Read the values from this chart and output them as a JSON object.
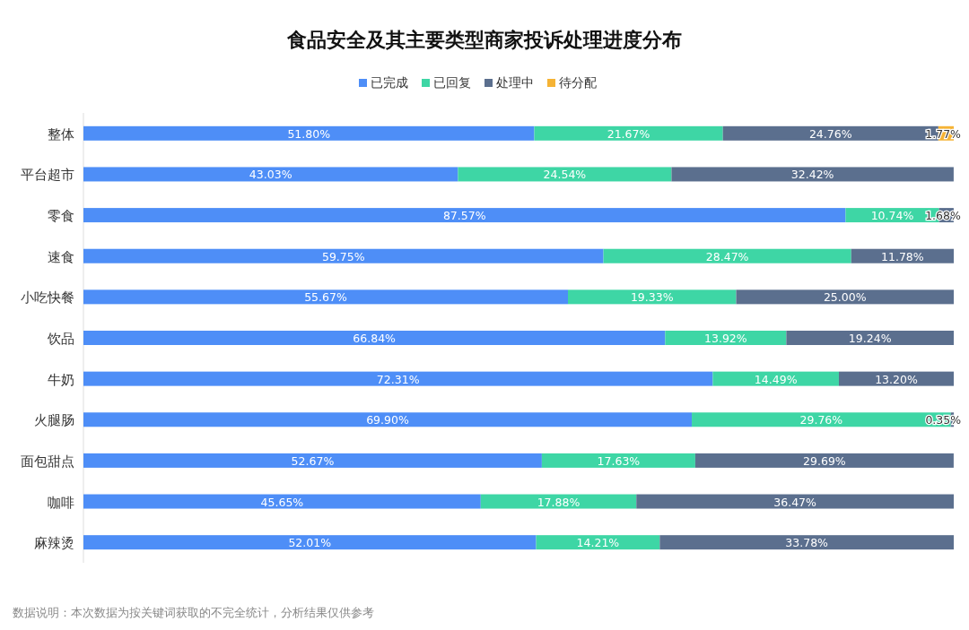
{
  "chart_data": {
    "type": "bar",
    "orientation": "horizontal",
    "stacked": true,
    "title": "食品安全及其主要类型商家投诉处理进度分布",
    "categories": [
      "整体",
      "平台超市",
      "零食",
      "速食",
      "小吃快餐",
      "饮品",
      "牛奶",
      "火腿肠",
      "面包甜点",
      "咖啡",
      "麻辣烫"
    ],
    "xlim": [
      0,
      100
    ],
    "tick_labels": "y",
    "legend": "top",
    "series": [
      {
        "name": "已完成",
        "color": "#4e8ef7",
        "values": [
          51.8,
          43.03,
          87.57,
          59.75,
          55.67,
          66.84,
          72.31,
          69.9,
          52.67,
          45.65,
          52.01
        ],
        "value_labels": [
          "51.80%",
          "43.03%",
          "87.57%",
          "59.75%",
          "55.67%",
          "66.84%",
          "72.31%",
          "69.90%",
          "52.67%",
          "45.65%",
          "52.01%"
        ]
      },
      {
        "name": "已回复",
        "color": "#3ed6a5",
        "values": [
          21.67,
          24.54,
          10.74,
          28.47,
          19.33,
          13.92,
          14.49,
          29.76,
          17.63,
          17.88,
          14.21
        ],
        "value_labels": [
          "21.67%",
          "24.54%",
          "10.74%",
          "28.47%",
          "19.33%",
          "13.92%",
          "14.49%",
          "29.76%",
          "17.63%",
          "17.88%",
          "14.21%"
        ]
      },
      {
        "name": "处理中",
        "color": "#5b6f8e",
        "values": [
          24.76,
          32.42,
          1.68,
          11.78,
          25.0,
          19.24,
          13.2,
          0.35,
          29.69,
          36.47,
          33.78
        ],
        "value_labels": [
          "24.76%",
          "32.42%",
          "1.68%",
          "11.78%",
          "25.00%",
          "19.24%",
          "13.20%",
          "0.35%",
          "29.69%",
          "36.47%",
          "33.78%"
        ]
      },
      {
        "name": "待分配",
        "color": "#f5b335",
        "values": [
          1.77,
          null,
          null,
          null,
          null,
          null,
          null,
          null,
          null,
          null,
          null
        ],
        "value_labels": [
          "1.77%",
          null,
          null,
          null,
          null,
          null,
          null,
          null,
          null,
          null,
          null
        ]
      }
    ],
    "annotations": [
      "数据说明：本次数据为按关键词获取的不完全统计，分析结果仅供参考"
    ]
  }
}
